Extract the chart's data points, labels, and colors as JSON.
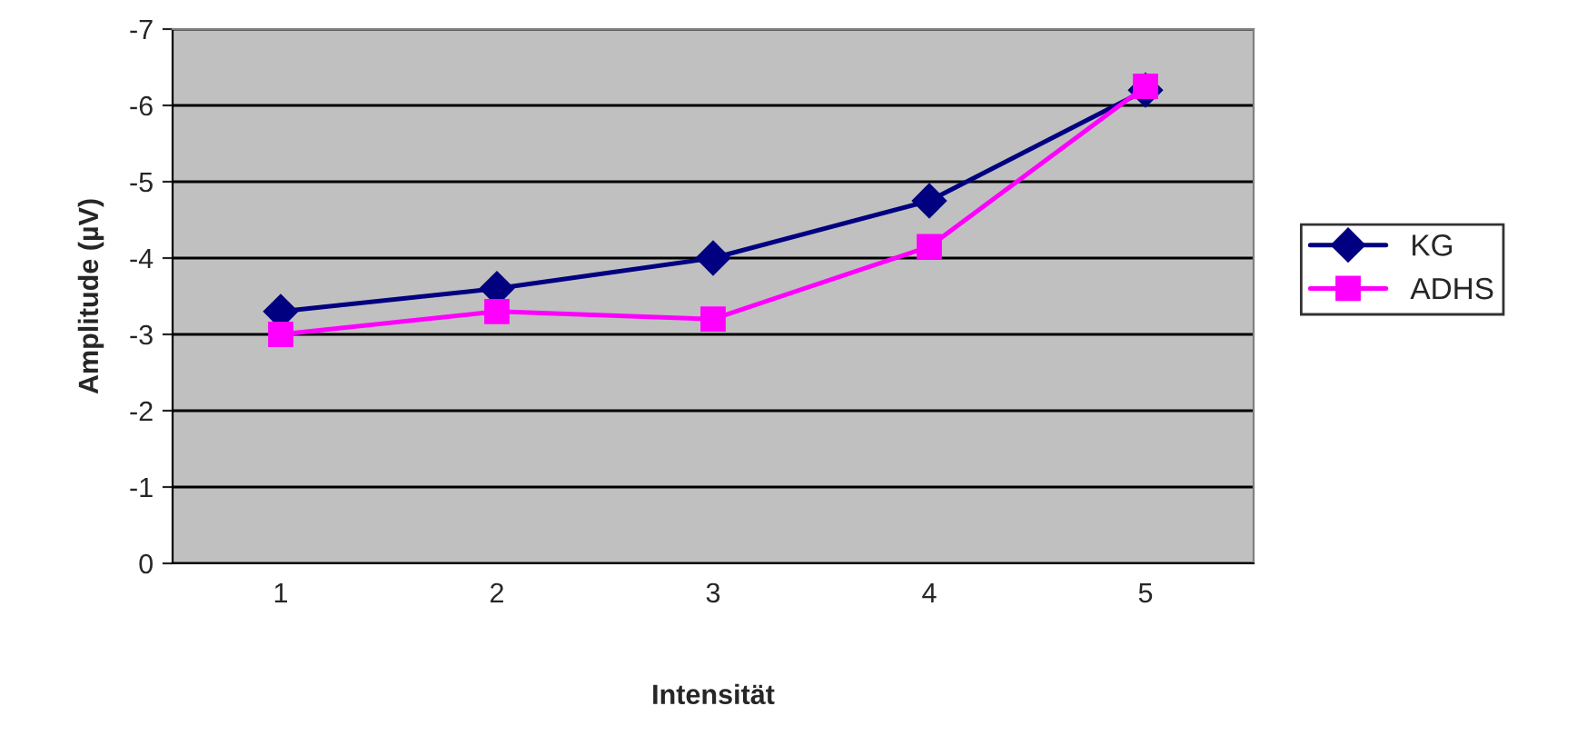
{
  "chart_data": {
    "type": "line",
    "xlabel": "Intensität",
    "ylabel": "Amplitude (µV)",
    "categories": [
      "1",
      "2",
      "3",
      "4",
      "5"
    ],
    "series": [
      {
        "name": "KG",
        "color": "#000080",
        "marker": "diamond",
        "values": [
          -3.3,
          -3.6,
          -4.0,
          -4.75,
          -6.2
        ]
      },
      {
        "name": "ADHS",
        "color": "#ff00ff",
        "marker": "square",
        "values": [
          -3.0,
          -3.3,
          -3.2,
          -4.15,
          -6.25
        ]
      }
    ],
    "ylim": [
      0,
      -7
    ],
    "yticks": [
      0,
      -1,
      -2,
      -3,
      -4,
      -5,
      -6,
      -7
    ],
    "grid": "y",
    "legend": "right",
    "line_style": "solid"
  }
}
